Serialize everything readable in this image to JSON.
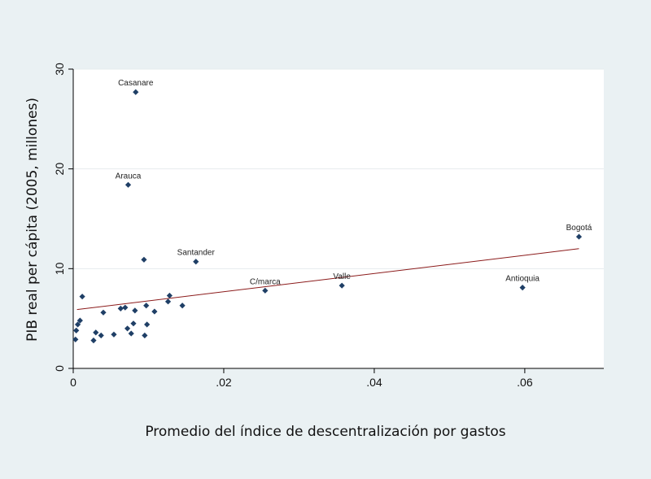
{
  "chart_data": {
    "type": "scatter",
    "title": "",
    "xlabel": "Promedio del índice de descentralización por gastos",
    "ylabel": "PIB real per cápita (2005, millones)",
    "xlim": [
      0,
      0.0705
    ],
    "ylim": [
      0,
      30
    ],
    "xticks": [
      0,
      0.02,
      0.04,
      0.06
    ],
    "xtick_labels": [
      "0",
      ".02",
      ".04",
      ".06"
    ],
    "yticks": [
      0,
      10,
      20,
      30
    ],
    "ytick_labels": [
      "0",
      "10",
      "20",
      "30"
    ],
    "grid": "horizontal",
    "marker_color": "#1f3f66",
    "fit_line_color": "#8b1a1a",
    "fit_line": {
      "x": [
        0.0005,
        0.0672
      ],
      "y": [
        5.9,
        12.0
      ]
    },
    "points": [
      {
        "x": 0.0083,
        "y": 27.7,
        "label": "Casanare"
      },
      {
        "x": 0.0073,
        "y": 18.4,
        "label": "Arauca"
      },
      {
        "x": 0.0672,
        "y": 13.2,
        "label": "Bogotá"
      },
      {
        "x": 0.0163,
        "y": 10.7,
        "label": "Santander"
      },
      {
        "x": 0.0094,
        "y": 10.9,
        "label": ""
      },
      {
        "x": 0.0255,
        "y": 7.8,
        "label": "C/marca"
      },
      {
        "x": 0.0357,
        "y": 8.3,
        "label": "Valle"
      },
      {
        "x": 0.0597,
        "y": 8.1,
        "label": "Antioquia"
      },
      {
        "x": 0.0012,
        "y": 7.2,
        "label": ""
      },
      {
        "x": 0.0004,
        "y": 3.8,
        "label": ""
      },
      {
        "x": 0.0006,
        "y": 4.4,
        "label": ""
      },
      {
        "x": 0.0009,
        "y": 4.8,
        "label": ""
      },
      {
        "x": 0.0003,
        "y": 2.9,
        "label": ""
      },
      {
        "x": 0.0027,
        "y": 2.8,
        "label": ""
      },
      {
        "x": 0.003,
        "y": 3.6,
        "label": ""
      },
      {
        "x": 0.0037,
        "y": 3.3,
        "label": ""
      },
      {
        "x": 0.004,
        "y": 5.6,
        "label": ""
      },
      {
        "x": 0.0054,
        "y": 3.4,
        "label": ""
      },
      {
        "x": 0.0063,
        "y": 6.0,
        "label": ""
      },
      {
        "x": 0.0069,
        "y": 6.1,
        "label": ""
      },
      {
        "x": 0.0072,
        "y": 4.0,
        "label": ""
      },
      {
        "x": 0.0077,
        "y": 3.5,
        "label": ""
      },
      {
        "x": 0.008,
        "y": 4.5,
        "label": ""
      },
      {
        "x": 0.0082,
        "y": 5.8,
        "label": ""
      },
      {
        "x": 0.0095,
        "y": 3.3,
        "label": ""
      },
      {
        "x": 0.0098,
        "y": 4.4,
        "label": ""
      },
      {
        "x": 0.0097,
        "y": 6.3,
        "label": ""
      },
      {
        "x": 0.0108,
        "y": 5.7,
        "label": ""
      },
      {
        "x": 0.0126,
        "y": 6.7,
        "label": ""
      },
      {
        "x": 0.0128,
        "y": 7.3,
        "label": ""
      },
      {
        "x": 0.0145,
        "y": 6.3,
        "label": ""
      }
    ]
  }
}
